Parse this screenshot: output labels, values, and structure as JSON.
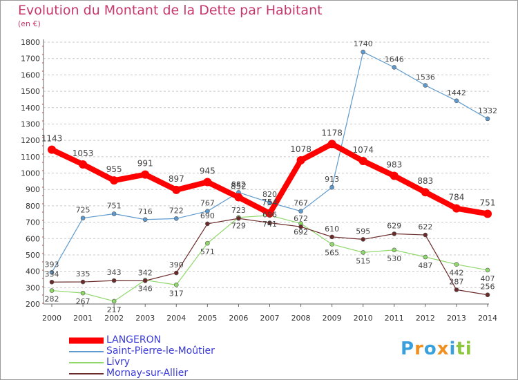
{
  "chart_data": {
    "type": "line",
    "title": "Evolution du Montant de la Dette par Habitant",
    "unit_label": "(en €)",
    "x": [
      "2000",
      "2001",
      "2002",
      "2003",
      "2004",
      "2005",
      "2006",
      "2007",
      "2008",
      "2009",
      "2010",
      "2011",
      "2012",
      "2013",
      "2014"
    ],
    "ylim": [
      200,
      1800
    ],
    "yticks": [
      200,
      300,
      400,
      500,
      600,
      700,
      800,
      900,
      1000,
      1100,
      1200,
      1300,
      1400,
      1500,
      1600,
      1700,
      1800
    ],
    "grid": "horizontal-dashed",
    "legend_placement": "bottom-left",
    "series": [
      {
        "name": "LANGERON",
        "color": "#ff0000",
        "values": [
          1143,
          1053,
          955,
          991,
          897,
          945,
          852,
          754,
          1078,
          1178,
          1074,
          983,
          883,
          784,
          751
        ]
      },
      {
        "name": "Saint-Pierre-le-Moûtier",
        "color": "#5e9acd",
        "values": [
          393,
          725,
          751,
          716,
          722,
          767,
          882,
          820,
          767,
          913,
          1740,
          1646,
          1536,
          1442,
          1332
        ]
      },
      {
        "name": "Livry",
        "color": "#8fd86a",
        "values": [
          282,
          267,
          217,
          346,
          317,
          571,
          729,
          741,
          692,
          565,
          515,
          530,
          487,
          442,
          407
        ]
      },
      {
        "name": "Mornay-sur-Allier",
        "color": "#6b2a2a",
        "values": [
          334,
          335,
          343,
          342,
          390,
          690,
          723,
          696,
          672,
          610,
          595,
          629,
          622,
          287,
          256
        ]
      }
    ]
  },
  "brand": {
    "letters": [
      "P",
      "r",
      "o",
      "x",
      "i",
      "t",
      "i"
    ],
    "colors": [
      "#3aa0dc",
      "#f09020",
      "#3aa0dc",
      "#f09020",
      "#3aa0dc",
      "#8dc63f",
      "#8dc63f"
    ]
  }
}
